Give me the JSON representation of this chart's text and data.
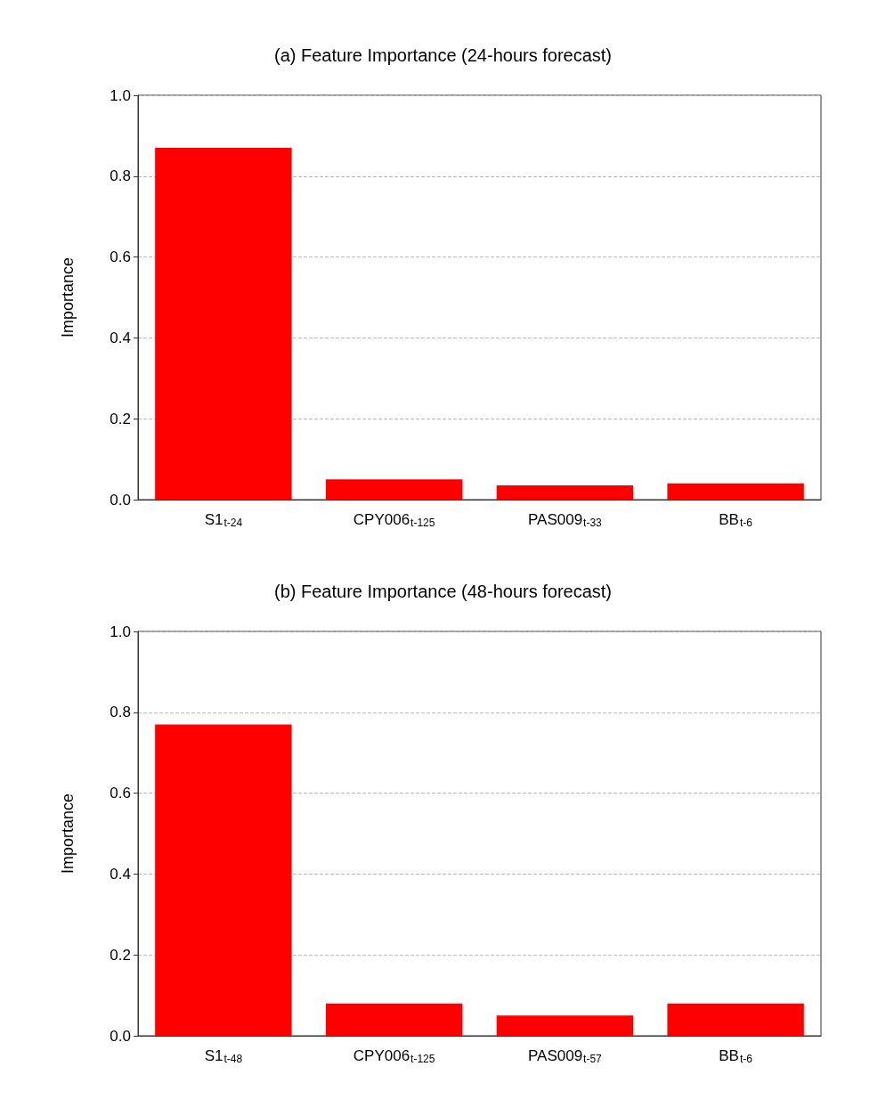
{
  "chart_data": [
    {
      "type": "bar",
      "title": "(a) Feature Importance (24-hours forecast)",
      "ylabel": "Importance",
      "categories": [
        "S1$_{t-24}$",
        "CPY006$_{t-125}$",
        "PAS009$_{t-33}$",
        "BB$_{t-6}$"
      ],
      "values": [
        0.87,
        0.05,
        0.035,
        0.04
      ],
      "color": "#ff0000",
      "ylim": [
        0,
        1.0
      ],
      "yticks": [
        {
          "value": 0,
          "label": "0.0"
        },
        {
          "value": 0.2,
          "label": "0.2"
        },
        {
          "value": 0.4,
          "label": "0.4"
        },
        {
          "value": 0.6,
          "label": "0.6"
        },
        {
          "value": 0.8,
          "label": "0.8"
        },
        {
          "value": 1.0,
          "label": "1.0"
        }
      ],
      "grid": "y"
    },
    {
      "type": "bar",
      "title": "(b) Feature Importance (48-hours forecast)",
      "ylabel": "Importance",
      "categories": [
        "S1$_{t-48}$",
        "CPY006$_{t-125}$",
        "PAS009$_{t-57}$",
        "BB$_{t-6}$"
      ],
      "values": [
        0.77,
        0.08,
        0.05,
        0.08
      ],
      "color": "#ff0000",
      "ylim": [
        0,
        1.0
      ],
      "yticks": [
        {
          "value": 0,
          "label": "0.0"
        },
        {
          "value": 0.2,
          "label": "0.2"
        },
        {
          "value": 0.4,
          "label": "0.4"
        },
        {
          "value": 0.6,
          "label": "0.6"
        },
        {
          "value": 0.8,
          "label": "0.8"
        },
        {
          "value": 1.0,
          "label": "1.0"
        }
      ],
      "grid": "y"
    }
  ]
}
